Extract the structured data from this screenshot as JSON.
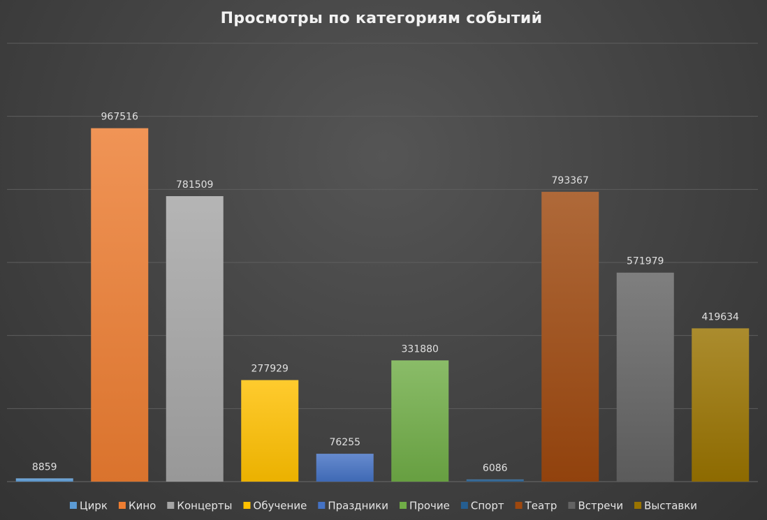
{
  "chart_data": {
    "type": "bar",
    "title": "Просмотры по категориям событий",
    "categories": [
      "Цирк",
      "Кино",
      "Концерты",
      "Обучение",
      "Праздники",
      "Прочие",
      "Спорт",
      "Театр",
      "Встречи",
      "Выставки"
    ],
    "series": [
      {
        "values": [
          8859,
          967516,
          781509,
          277929,
          76255,
          331880,
          6086,
          793367,
          571979,
          419634
        ]
      }
    ],
    "colors": [
      "#5b9bd5",
      "#ed7d31",
      "#a5a5a5",
      "#ffc000",
      "#4472c4",
      "#70ad47",
      "#255e91",
      "#9e480e",
      "#636363",
      "#997300"
    ],
    "ylim": [
      0,
      1200000
    ],
    "grid": true,
    "legend": "bottom",
    "data_labels": true
  }
}
